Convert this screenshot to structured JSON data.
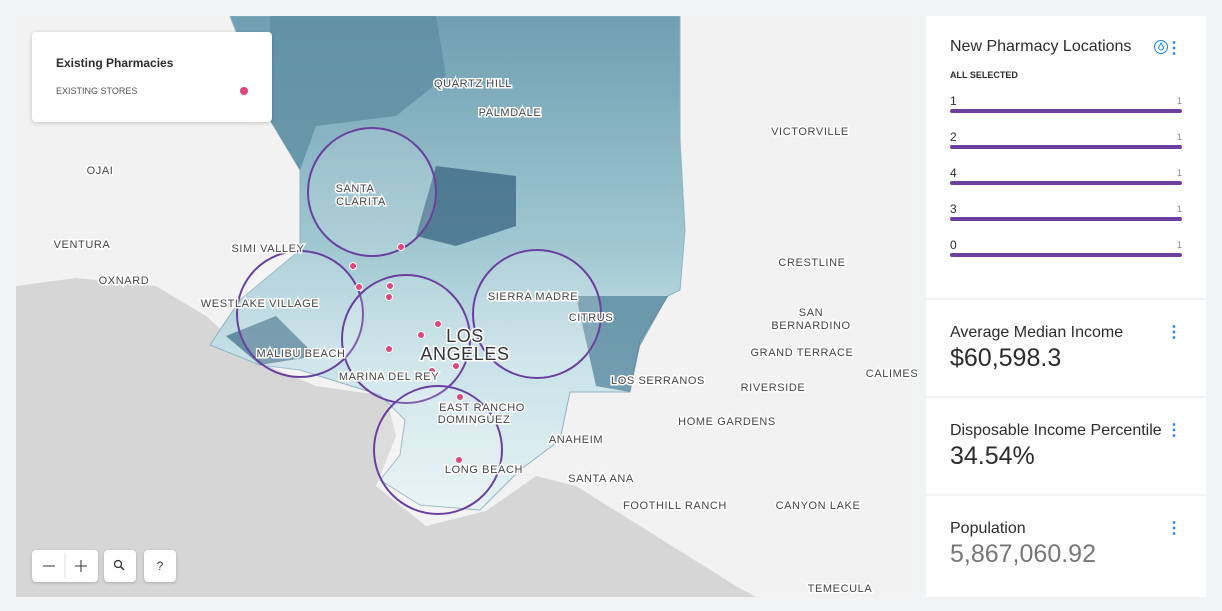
{
  "legend": {
    "title": "Existing Pharmacies",
    "items": [
      {
        "label": "EXISTING STORES"
      }
    ]
  },
  "map": {
    "places": [
      "QUARTZ HILL",
      "PALMDALE",
      "VICTORVILLE",
      "OJAI",
      "SANTA",
      "CLARITA",
      "VENTURA",
      "SIMI VALLEY",
      "CRESTLINE",
      "OXNARD",
      "SIERRA MADRE",
      "WESTLAKE VILLAGE",
      "SAN",
      "BERNARDINO",
      "LOS",
      "ANGELES",
      "CITRUS",
      "GRAND TERRACE",
      "MALIBU BEACH",
      "MARINA DEL REY",
      "LOS SERRANOS",
      "RIVERSIDE",
      "CALIMESA",
      "EAST RANCHO",
      "DOMINGUEZ",
      "HOME GARDENS",
      "ANAHEIM",
      "LONG BEACH",
      "SANTA ANA",
      "FOOTHILL RANCH",
      "CANYON LAKE",
      "TEMECULA"
    ]
  },
  "controls": {
    "help": "?"
  },
  "widgets": [
    {
      "title": "New Pharmacy Locations",
      "subtitle": "ALL SELECTED",
      "categories": [
        {
          "label": "1",
          "count": "1"
        },
        {
          "label": "2",
          "count": "1"
        },
        {
          "label": "4",
          "count": "1"
        },
        {
          "label": "3",
          "count": "1"
        },
        {
          "label": "0",
          "count": "1"
        }
      ]
    },
    {
      "title": "Average Median Income",
      "value": "$60,598.3"
    },
    {
      "title": "Disposable Income Percentile",
      "value": "34.54%"
    },
    {
      "title": "Population",
      "value": "5,867,060.92"
    }
  ]
}
